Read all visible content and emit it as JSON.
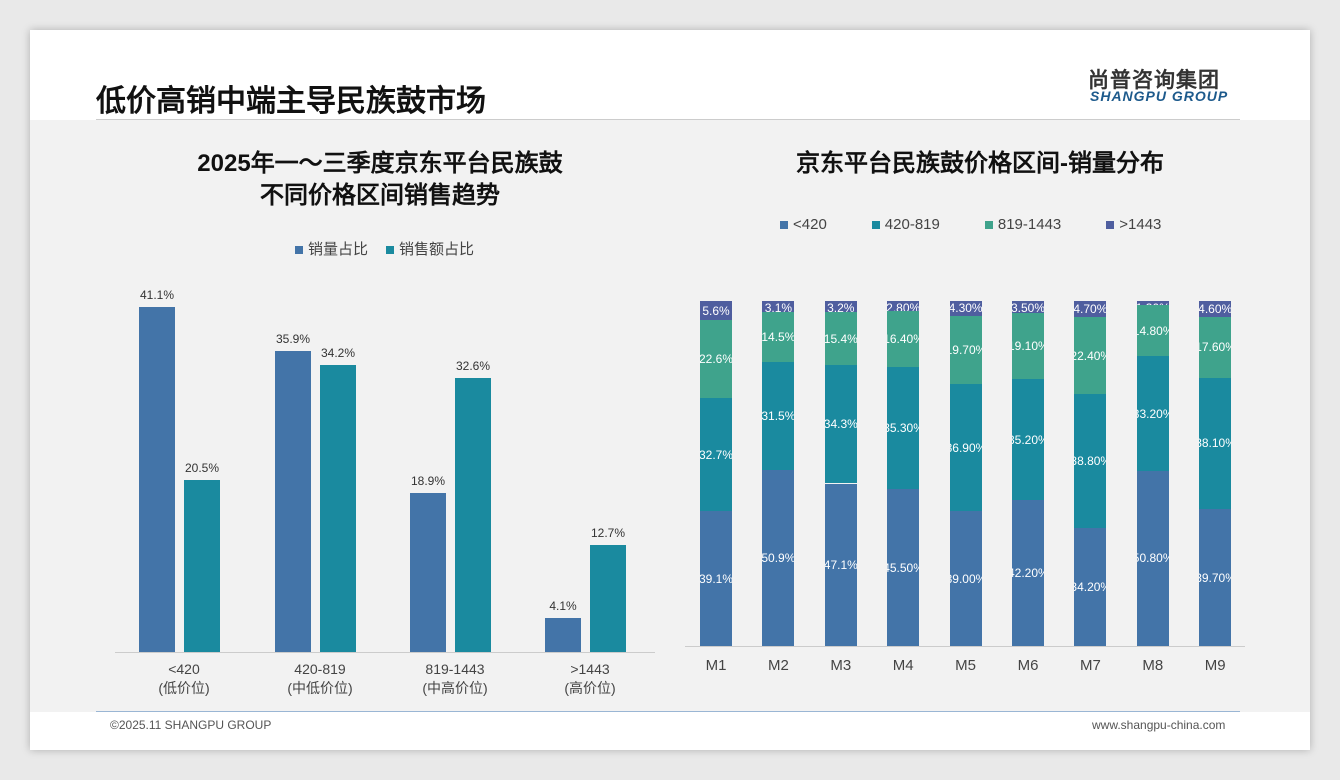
{
  "header": {
    "title": "低价高销中端主导民族鼓市场",
    "logo_cn": "尚普咨询集团",
    "logo_en": "SHANGPU GROUP"
  },
  "footer": {
    "copyright": "©2025.11 SHANGPU GROUP",
    "website": "www.shangpu-china.com"
  },
  "colors": {
    "blue": "#4374a8",
    "teal": "#1a8a9f",
    "green": "#3fa38c",
    "purple": "#4f5e9f"
  },
  "chart_data": [
    {
      "type": "bar",
      "title_line1": "2025年一～三季度京东平台民族鼓",
      "title_line2": "不同价格区间销售趋势",
      "categories": [
        "<420",
        "420-819",
        "819-1443",
        ">1443"
      ],
      "category_sub": [
        "(低价位)",
        "(中低价位)",
        "(中高价位)",
        "(高价位)"
      ],
      "series": [
        {
          "name": "销量占比",
          "values": [
            41.1,
            35.9,
            18.9,
            4.1
          ]
        },
        {
          "name": "销售额占比",
          "values": [
            20.5,
            34.2,
            32.6,
            12.7
          ]
        }
      ],
      "unit": "%",
      "ylim": [
        0,
        41.1
      ],
      "legend": "top"
    },
    {
      "type": "bar",
      "stacked": true,
      "title": "京东平台民族鼓价格区间-销量分布",
      "categories": [
        "M1",
        "M2",
        "M3",
        "M4",
        "M5",
        "M6",
        "M7",
        "M8",
        "M9"
      ],
      "series": [
        {
          "name": "<420",
          "values": [
            39.1,
            50.9,
            47.1,
            45.5,
            39.0,
            42.2,
            34.2,
            50.8,
            39.7
          ],
          "labels": [
            "39.1%",
            "50.9%",
            "47.1%",
            "45.50%",
            "39.00%",
            "42.20%",
            "34.20%",
            "50.80%",
            "39.70%"
          ]
        },
        {
          "name": "420-819",
          "values": [
            32.7,
            31.5,
            34.3,
            35.3,
            36.9,
            35.2,
            38.8,
            33.2,
            38.1
          ],
          "labels": [
            "32.7%",
            "31.5%",
            "34.3%",
            "35.30%",
            "36.90%",
            "35.20%",
            "38.80%",
            "33.20%",
            "38.10%"
          ]
        },
        {
          "name": "819-1443",
          "values": [
            22.6,
            14.5,
            15.4,
            16.4,
            19.7,
            19.1,
            22.4,
            14.8,
            17.6
          ],
          "labels": [
            "22.6%",
            "14.5%",
            "15.4%",
            "16.40%",
            "19.70%",
            "19.10%",
            "22.40%",
            "14.80%",
            "17.60%"
          ]
        },
        {
          "name": ">1443",
          "values": [
            5.6,
            3.1,
            3.2,
            2.8,
            4.3,
            3.5,
            4.7,
            1.3,
            4.6
          ],
          "labels": [
            "5.6%",
            "3.1%",
            "3.2%",
            "2.80%",
            "4.30%",
            "3.50%",
            "4.70%",
            "1.30%",
            "4.60%"
          ]
        }
      ],
      "ylim": [
        0,
        100
      ],
      "legend": "top"
    }
  ]
}
